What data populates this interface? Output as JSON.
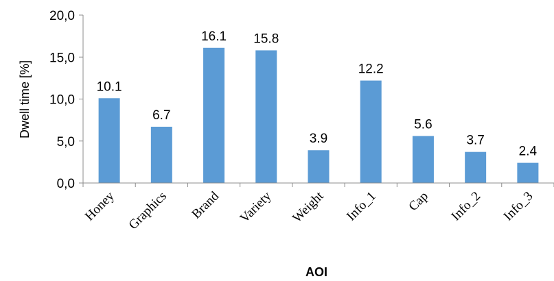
{
  "chart_data": {
    "type": "bar",
    "categories": [
      "Honey",
      "Graphics",
      "Brand",
      "Variety",
      "Weight",
      "Info_1",
      "Cap",
      "Info_2",
      "Info_3"
    ],
    "values": [
      10.1,
      6.7,
      16.1,
      15.8,
      3.9,
      12.2,
      5.6,
      3.7,
      2.4
    ],
    "value_labels": [
      "10.1",
      "6.7",
      "16.1",
      "15.8",
      "3.9",
      "12.2",
      "5.6",
      "3.7",
      "2.4"
    ],
    "yticks": [
      0,
      5,
      10,
      15,
      20
    ],
    "ytick_labels": [
      "0,0",
      "5,0",
      "10,0",
      "15,0",
      "20,0"
    ],
    "ylim": [
      0,
      20
    ],
    "xlabel": "AOI",
    "ylabel": "Dwell time [%]",
    "title": "",
    "grid": false,
    "legend": "none",
    "bar_color": "#5b9bd5"
  }
}
